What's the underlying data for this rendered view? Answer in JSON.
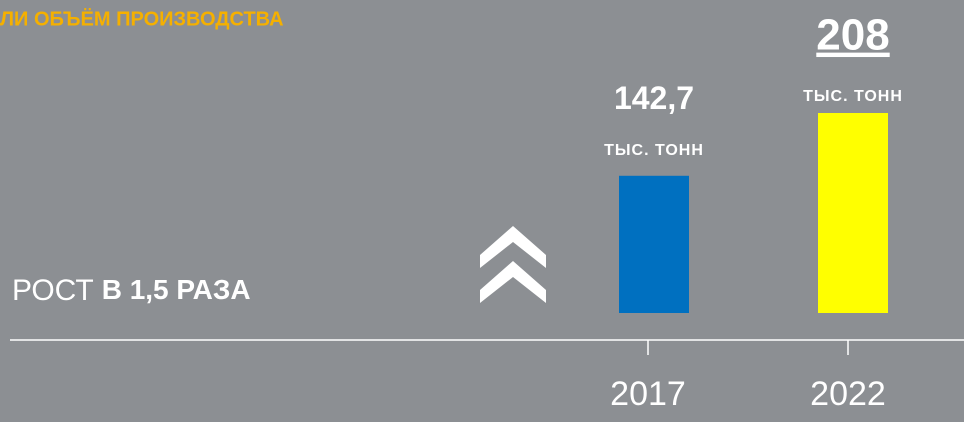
{
  "chart_data": {
    "type": "bar",
    "title": "ЛИ ОБЪЁМ ПРОИЗВОДСТВА",
    "categories": [
      "2017",
      "2022"
    ],
    "values": [
      142.7,
      208
    ],
    "value_labels": [
      "142,7",
      "208"
    ],
    "unit": "тыс. тонн",
    "colors": [
      "#0070c0",
      "#ffff00"
    ],
    "annotation": {
      "prefix": "РОСТ",
      "emphasis": "В 1,5 РАЗА"
    }
  }
}
